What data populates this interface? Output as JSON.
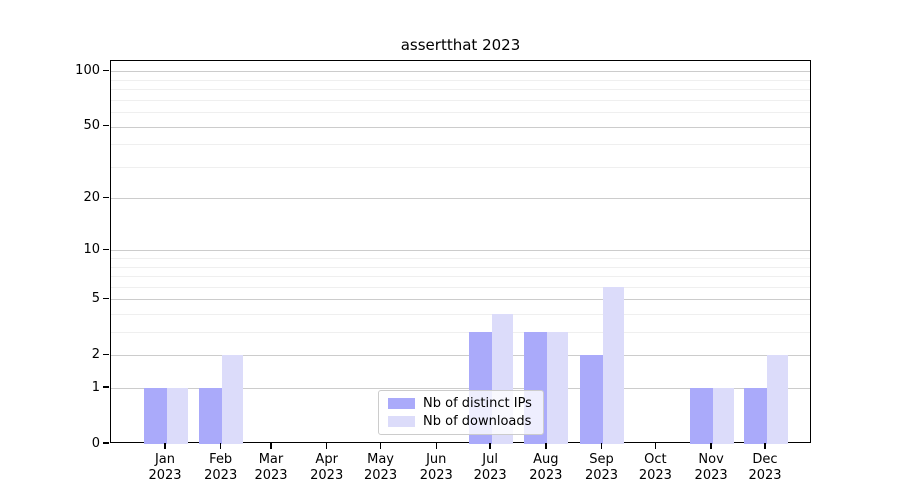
{
  "title": "assertthat 2023",
  "colors": {
    "distinct_ips": "#aaaafa",
    "downloads": "#dcdcfa",
    "major_grid": "#cccccc",
    "minor_grid": "#efefef",
    "axis": "#000000",
    "legend_border": "#cccccc"
  },
  "chart_data": {
    "type": "bar",
    "title": "assertthat 2023",
    "categories": [
      "Jan 2023",
      "Feb 2023",
      "Mar 2023",
      "Apr 2023",
      "May 2023",
      "Jun 2023",
      "Jul 2023",
      "Aug 2023",
      "Sep 2023",
      "Oct 2023",
      "Nov 2023",
      "Dec 2023"
    ],
    "series": [
      {
        "name": "Nb of distinct IPs",
        "color": "#aaaafa",
        "values": [
          1,
          1,
          0,
          0,
          0,
          0,
          3,
          3,
          2,
          0,
          1,
          1
        ]
      },
      {
        "name": "Nb of downloads",
        "color": "#dcdcfa",
        "values": [
          1,
          2,
          0,
          0,
          0,
          0,
          4,
          3,
          6,
          0,
          1,
          2
        ]
      }
    ],
    "xlabel": "",
    "ylabel": "",
    "yscale": "log1p",
    "ylim": [
      0,
      114
    ],
    "y_major_ticks": [
      0,
      1,
      2,
      5,
      10,
      20,
      50,
      100
    ],
    "y_minor_ticks": [
      3,
      4,
      6,
      7,
      8,
      9,
      30,
      40,
      60,
      70,
      80,
      90
    ],
    "grid": "on",
    "legend_position": "lower center"
  }
}
